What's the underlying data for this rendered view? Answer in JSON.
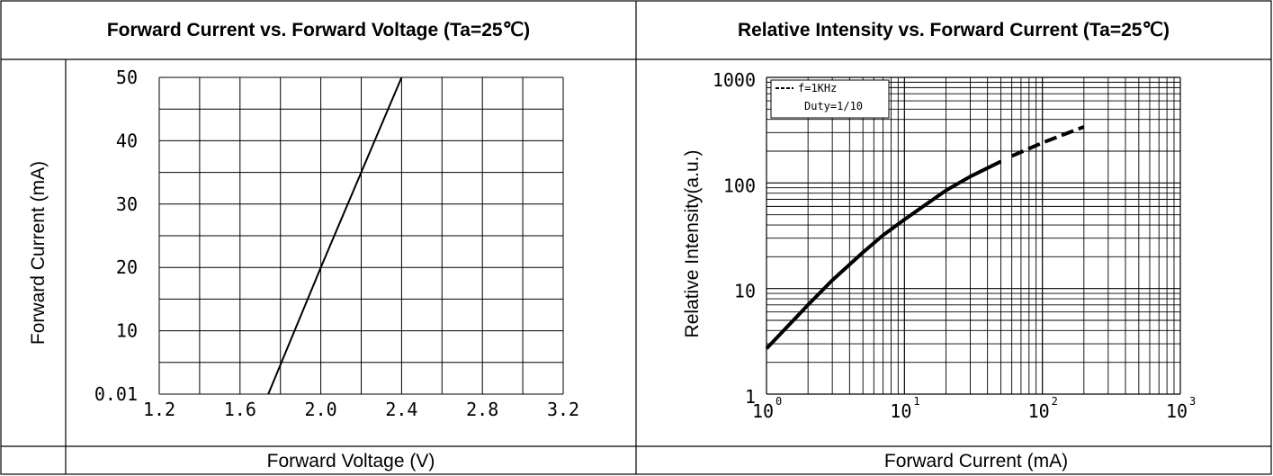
{
  "chart_data": [
    {
      "type": "line",
      "title": "Forward Current vs. Forward Voltage (Ta=25℃)",
      "xlabel": "Forward Voltage (V)",
      "ylabel": "Forward Current (mA)",
      "xlim": [
        1.2,
        3.2
      ],
      "ylim": [
        0,
        50
      ],
      "x_ticks": [
        "1.2",
        "1.6",
        "2.0",
        "2.4",
        "2.8",
        "3.2"
      ],
      "y_ticks": [
        "0.01",
        "10",
        "20",
        "30",
        "40",
        "50"
      ],
      "grid": true,
      "series": [
        {
          "x": [
            1.74,
            2.0,
            2.2,
            2.4
          ],
          "y": [
            0,
            20,
            35,
            50
          ]
        }
      ]
    },
    {
      "type": "line",
      "title": "Relative Intensity vs. Forward Current (Ta=25℃)",
      "xlabel": "Forward Current (mA)",
      "ylabel": "Relative Intensity(a.u.)",
      "xscale": "log",
      "yscale": "log",
      "xlim": [
        1,
        1000
      ],
      "ylim": [
        1,
        1000
      ],
      "x_ticks": [
        "10",
        "10",
        "10",
        "10"
      ],
      "x_tick_exponents": [
        "0",
        "1",
        "2",
        "3"
      ],
      "y_ticks": [
        "1",
        "10",
        "100",
        "1000"
      ],
      "grid": true,
      "legend": {
        "line1": "f=1KHz",
        "line2": "Duty=1/10",
        "placement": "top-left"
      },
      "series": [
        {
          "style": "solid",
          "x": [
            1,
            2,
            3,
            5,
            7,
            10,
            20,
            30,
            50
          ],
          "y": [
            2.7,
            7,
            12,
            22,
            32,
            45,
            85,
            115,
            160
          ]
        },
        {
          "style": "dashed",
          "x": [
            60,
            100,
            150,
            200
          ],
          "y": [
            180,
            240,
            295,
            340
          ]
        }
      ]
    }
  ]
}
